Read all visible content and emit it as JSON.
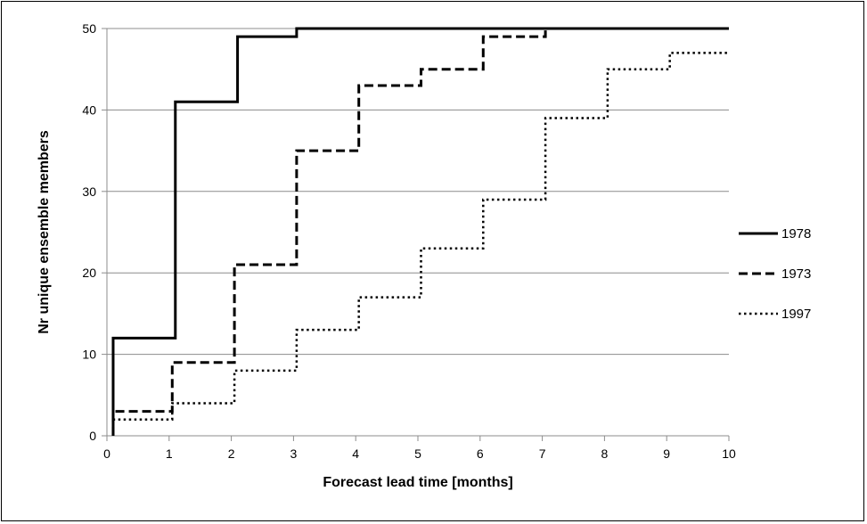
{
  "chart_data": {
    "type": "line",
    "step": true,
    "xlabel": "Forecast lead time [months]",
    "ylabel": "Nr unique ensemble members",
    "xlim": [
      0,
      10
    ],
    "ylim": [
      0,
      50
    ],
    "xticks": [
      "0",
      "1",
      "2",
      "3",
      "4",
      "5",
      "6",
      "7",
      "8",
      "9",
      "10"
    ],
    "yticks": [
      "0",
      "10",
      "20",
      "30",
      "40",
      "50"
    ],
    "grid": "horizontal",
    "legend_position": "right",
    "series": [
      {
        "name": "1978",
        "style": "solid",
        "color": "#000000",
        "x": [
          0.1,
          1.1,
          2.1,
          3.05,
          4.05,
          5.05,
          6.05,
          7.05,
          8.05,
          9.05,
          10
        ],
        "y": [
          12,
          41,
          49,
          50,
          50,
          50,
          50,
          50,
          50,
          50,
          50
        ]
      },
      {
        "name": "1973",
        "style": "dashed",
        "color": "#000000",
        "x": [
          0.1,
          1.05,
          2.05,
          3.05,
          4.05,
          5.05,
          6.05,
          7.05,
          8.05,
          9.05,
          10
        ],
        "y": [
          3,
          9,
          21,
          35,
          43,
          45,
          49,
          50,
          50,
          50,
          50
        ]
      },
      {
        "name": "1997",
        "style": "dotted",
        "color": "#000000",
        "x": [
          0.1,
          1.05,
          2.05,
          3.05,
          4.05,
          5.05,
          6.05,
          7.05,
          8.05,
          9.05,
          10
        ],
        "y": [
          2,
          4,
          8,
          13,
          17,
          23,
          29,
          39,
          45,
          47,
          47
        ]
      }
    ]
  }
}
